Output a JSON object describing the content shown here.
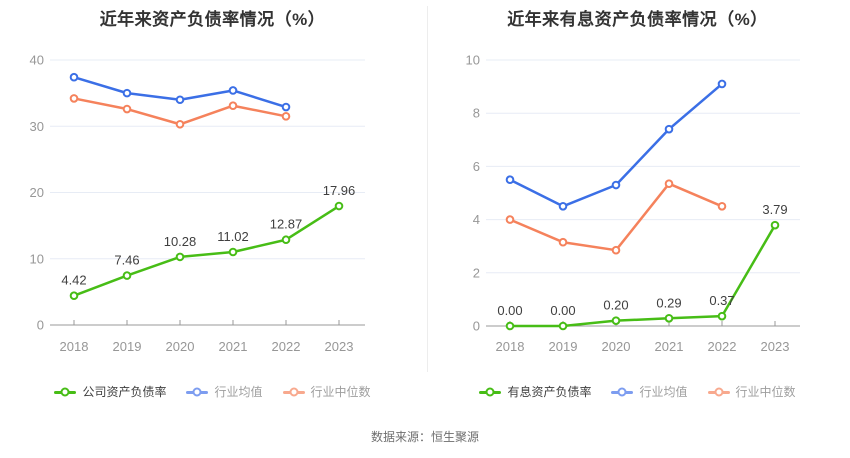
{
  "source": "数据来源：恒生聚源",
  "colors": {
    "company_green": "#47BD16",
    "industry_blue": "#3B6FE6",
    "median_orange": "#F5825C",
    "legend_blue_light": "#7D9DF0",
    "legend_orange_light": "#F8A98E",
    "grid_line": "#E7ECF5",
    "axis_line": "#999999",
    "tick_label": "#979797",
    "data_label": "#3F3F3F",
    "title_text": "#333333",
    "legend_active_text": "#404040",
    "legend_inactive_text": "#9E9E9E"
  },
  "chart_data": [
    {
      "type": "line",
      "title": "近年来资产负债率情况（%）",
      "x": [
        "2018",
        "2019",
        "2020",
        "2021",
        "2022",
        "2023"
      ],
      "ylim": [
        0,
        40
      ],
      "y_ticks": [
        0,
        10,
        20,
        30,
        40
      ],
      "grid": true,
      "legend_position": "bottom",
      "series": [
        {
          "name": "公司资产负债率",
          "key": "company",
          "color": "#47BD16",
          "values": [
            4.42,
            7.46,
            10.28,
            11.02,
            12.87,
            17.96
          ],
          "point_labels": [
            "4.42",
            "7.46",
            "10.28",
            "11.02",
            "12.87",
            "17.96"
          ]
        },
        {
          "name": "行业均值",
          "key": "industry-average",
          "color": "#3B6FE6",
          "values": [
            37.4,
            35.0,
            34.0,
            35.4,
            32.9,
            null
          ]
        },
        {
          "name": "行业中位数",
          "key": "industry-median",
          "color": "#F5825C",
          "values": [
            34.2,
            32.6,
            30.3,
            33.1,
            31.5,
            null
          ]
        }
      ],
      "legend": [
        {
          "label": "公司资产负债率",
          "marker_color": "#47BD16",
          "active": true
        },
        {
          "label": "行业均值",
          "marker_color": "#7D9DF0",
          "active": false
        },
        {
          "label": "行业中位数",
          "marker_color": "#F8A98E",
          "active": false
        }
      ]
    },
    {
      "type": "line",
      "title": "近年来有息资产负债率情况（%）",
      "x": [
        "2018",
        "2019",
        "2020",
        "2021",
        "2022",
        "2023"
      ],
      "ylim": [
        0,
        10
      ],
      "y_ticks": [
        0,
        2,
        4,
        6,
        8,
        10
      ],
      "grid": true,
      "legend_position": "bottom",
      "series": [
        {
          "name": "有息资产负债率",
          "key": "company",
          "color": "#47BD16",
          "values": [
            0.0,
            0.0,
            0.2,
            0.29,
            0.37,
            3.79
          ],
          "point_labels": [
            "0.00",
            "0.00",
            "0.20",
            "0.29",
            "0.37",
            "3.79"
          ]
        },
        {
          "name": "行业均值",
          "key": "industry-average",
          "color": "#3B6FE6",
          "values": [
            5.5,
            4.5,
            5.3,
            7.4,
            9.1,
            null
          ]
        },
        {
          "name": "行业中位数",
          "key": "industry-median",
          "color": "#F5825C",
          "values": [
            4.0,
            3.15,
            2.85,
            5.35,
            4.5,
            null
          ]
        }
      ],
      "legend": [
        {
          "label": "有息资产负债率",
          "marker_color": "#47BD16",
          "active": true
        },
        {
          "label": "行业均值",
          "marker_color": "#7D9DF0",
          "active": false
        },
        {
          "label": "行业中位数",
          "marker_color": "#F8A98E",
          "active": false
        }
      ]
    }
  ]
}
